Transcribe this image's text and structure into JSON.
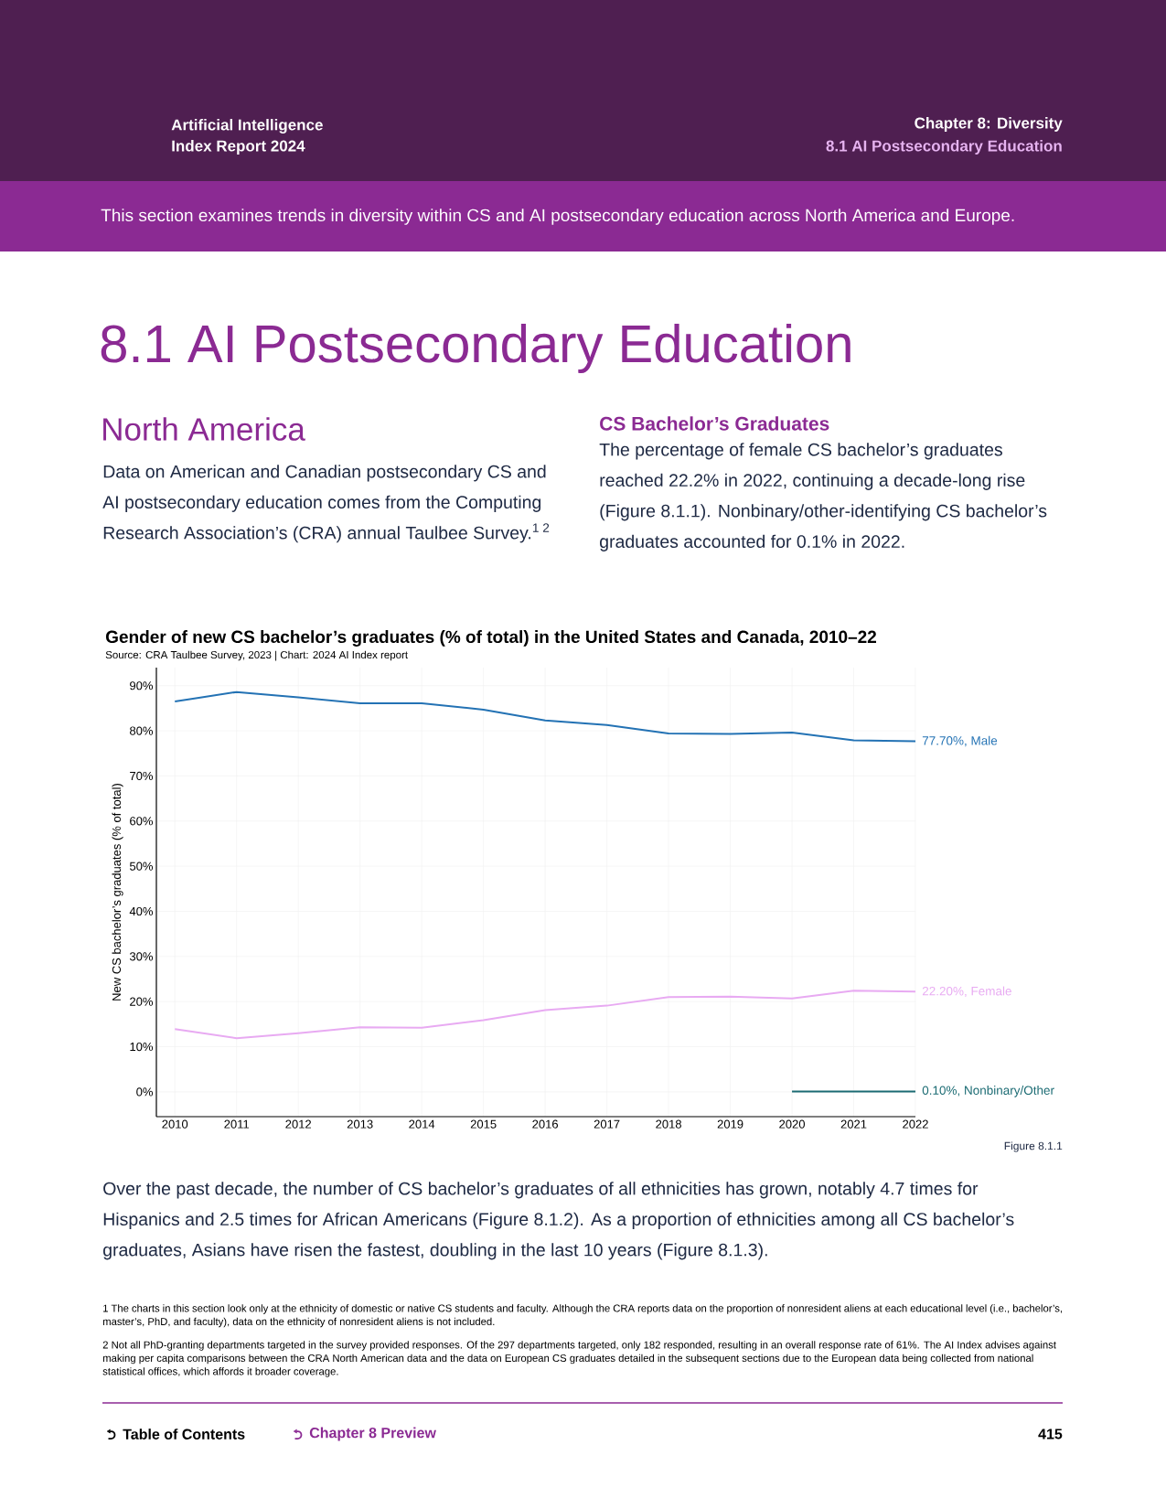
{
  "chart_data": {
    "type": "line",
    "title": "Gender of new CS bachelor’s graduates (% of total) in the United States and Canada, 2010–22",
    "subtitle": "Source: CRA Taulbee Survey, 2023 | Chart: 2024 AI Index report",
    "ylabel": "New CS bachelor’s graduates (% of total)",
    "x": [
      2010,
      2011,
      2012,
      2013,
      2014,
      2015,
      2016,
      2017,
      2018,
      2019,
      2020,
      2021,
      2022
    ],
    "series": [
      {
        "color": "#2372b4",
        "values": [
          86.5,
          88.6,
          87.4,
          86.1,
          86.1,
          84.7,
          82.3,
          81.3,
          79.4,
          79.3,
          79.6,
          77.9,
          77.7
        ],
        "value_labels": [
          null,
          null,
          null,
          null,
          null,
          null,
          null,
          null,
          null,
          null,
          null,
          null,
          "77.70%, Male"
        ]
      },
      {
        "color": "#e8aaf2",
        "values": [
          13.9,
          11.9,
          13.0,
          14.3,
          14.2,
          15.9,
          18.1,
          19.1,
          21.0,
          21.1,
          20.7,
          22.4,
          22.2
        ],
        "value_labels": [
          null,
          null,
          null,
          null,
          null,
          null,
          null,
          null,
          null,
          null,
          null,
          null,
          "22.20%, Female"
        ]
      },
      {
        "color": "#1b6b73",
        "values": [
          null,
          null,
          null,
          null,
          null,
          null,
          null,
          null,
          null,
          null,
          0.1,
          0.1,
          0.1
        ],
        "value_labels": [
          null,
          null,
          null,
          null,
          null,
          null,
          null,
          null,
          null,
          null,
          null,
          null,
          "0.10%, Nonbinary/Other"
        ]
      }
    ],
    "xlim": [
      2009.7,
      2022
    ],
    "ylim": [
      -5.5,
      94
    ],
    "xticks": [
      2010,
      2011,
      2012,
      2013,
      2014,
      2015,
      2016,
      2017,
      2018,
      2019,
      2020,
      2021,
      2022
    ],
    "yticks": [
      {
        "value": 0,
        "label": "0%"
      },
      {
        "value": 10,
        "label": "10%"
      },
      {
        "value": 20,
        "label": "20%"
      },
      {
        "value": 30,
        "label": "30%"
      },
      {
        "value": 40,
        "label": "40%"
      },
      {
        "value": 50,
        "label": "50%"
      },
      {
        "value": 60,
        "label": "60%"
      },
      {
        "value": 70,
        "label": "70%"
      },
      {
        "value": 80,
        "label": "80%"
      },
      {
        "value": 90,
        "label": "90%"
      }
    ],
    "grid": true,
    "annotations": [
      "Artificial Intelligence",
      "Index Report 2024",
      "Chapter 8: Diversity",
      "8.1 AI Postsecondary Education",
      "This section examines trends in diversity within CS and AI postsecondary education across North America and Europe.",
      "8.1 AI Postsecondary Education",
      "North America",
      "Data on American and Canadian postsecondary CS and AI postsecondary education comes from the Computing Research Association’s (CRA) annual Taulbee Survey.$^{1 2}$",
      "CS Bachelor’s Graduates",
      "The percentage of female CS bachelor’s graduates reached 22.2% in 2022, continuing a decade-long rise (Figure 8.1.1). Nonbinary/other-identifying CS bachelor’s graduates accounted for 0.1% in 2022.",
      "Figure 8.1.1",
      "Over the past decade, the number of CS bachelor’s graduates of all ethnicities has grown, notably 4.7 times for Hispanics and 2.5 times for African Americans (Figure 8.1.2). As a proportion of ethnicities among all CS bachelor’s graduates, Asians have risen the fastest, doubling in the last 10 years (Figure 8.1.3).",
      "1  The charts in this section look only at the ethnicity of domestic or native CS students and faculty. Although the CRA reports data on the proportion of nonresident aliens at each educational level (i.e., bachelor’s, master’s, PhD, and faculty), data on the ethnicity of nonresident aliens is not included.",
      "2 Not all PhD-granting departments targeted in the survey provided responses. Of the 297 departments targeted, only 182 responded, resulting in an overall response rate of 61%. The AI Index advises against making per capita comparisons between the CRA North American data and the data on European CS graduates detailed in the subsequent sections due to the European data being collected from national statistical offices, which affords it broader coverage.",
      "Table of Contents",
      "Chapter 8 Preview",
      "415"
    ]
  }
}
